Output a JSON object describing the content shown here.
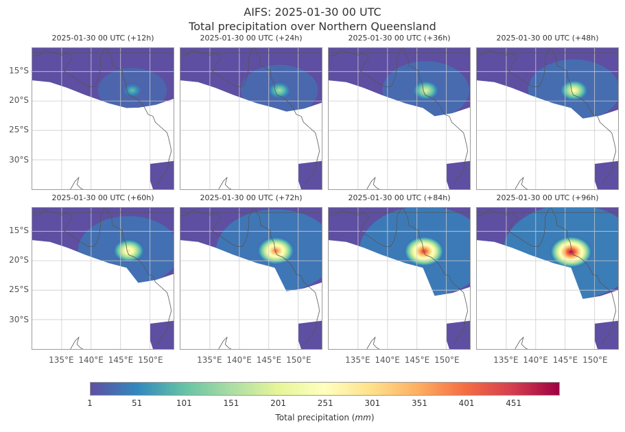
{
  "title": "AIFS: 2025-01-30 00 UTC",
  "subtitle": "Total precipitation over Northern Queensland",
  "chart_data": {
    "type": "heatmap",
    "variable": "Total precipitation",
    "units": "mm",
    "colorbar_label_prefix": "Total precipitation (",
    "colorbar_label_unit": "mm",
    "colorbar_label_suffix": ")",
    "colormap": "Spectral_r",
    "colorbar_range": [
      1,
      500
    ],
    "colorbar_ticks": [
      1,
      51,
      101,
      151,
      201,
      251,
      301,
      351,
      401,
      451
    ],
    "colorbar_tick_labels": [
      "1",
      "51",
      "101",
      "151",
      "201",
      "251",
      "301",
      "351",
      "401",
      "451"
    ],
    "lon_range": [
      130,
      154
    ],
    "lat_range": [
      -35,
      -11
    ],
    "x_ticks": [
      135,
      140,
      145,
      150
    ],
    "x_tick_labels": [
      "135°E",
      "140°E",
      "145°E",
      "150°E"
    ],
    "y_ticks": [
      -15,
      -20,
      -25,
      -30
    ],
    "y_tick_labels": [
      "15°S",
      "20°S",
      "25°S",
      "30°S"
    ],
    "grid": true,
    "panels": [
      {
        "label": "2025-01-30 00 UTC (+12h)",
        "max_precip_mm": 90,
        "max_lon": 147,
        "max_lat": -18.2
      },
      {
        "label": "2025-01-30 00 UTC (+24h)",
        "max_precip_mm": 140,
        "max_lon": 146.8,
        "max_lat": -18.2
      },
      {
        "label": "2025-01-30 00 UTC (+36h)",
        "max_precip_mm": 200,
        "max_lon": 146.5,
        "max_lat": -18.2
      },
      {
        "label": "2025-01-30 00 UTC (+48h)",
        "max_precip_mm": 230,
        "max_lon": 146.5,
        "max_lat": -18.2
      },
      {
        "label": "2025-01-30 00 UTC (+60h)",
        "max_precip_mm": 290,
        "max_lon": 146.4,
        "max_lat": -18.3
      },
      {
        "label": "2025-01-30 00 UTC (+72h)",
        "max_precip_mm": 400,
        "max_lon": 146.2,
        "max_lat": -18.3
      },
      {
        "label": "2025-01-30 00 UTC (+84h)",
        "max_precip_mm": 460,
        "max_lon": 146.2,
        "max_lat": -18.4
      },
      {
        "label": "2025-01-30 00 UTC (+96h)",
        "max_precip_mm": 500,
        "max_lon": 146.0,
        "max_lat": -18.5
      }
    ]
  }
}
